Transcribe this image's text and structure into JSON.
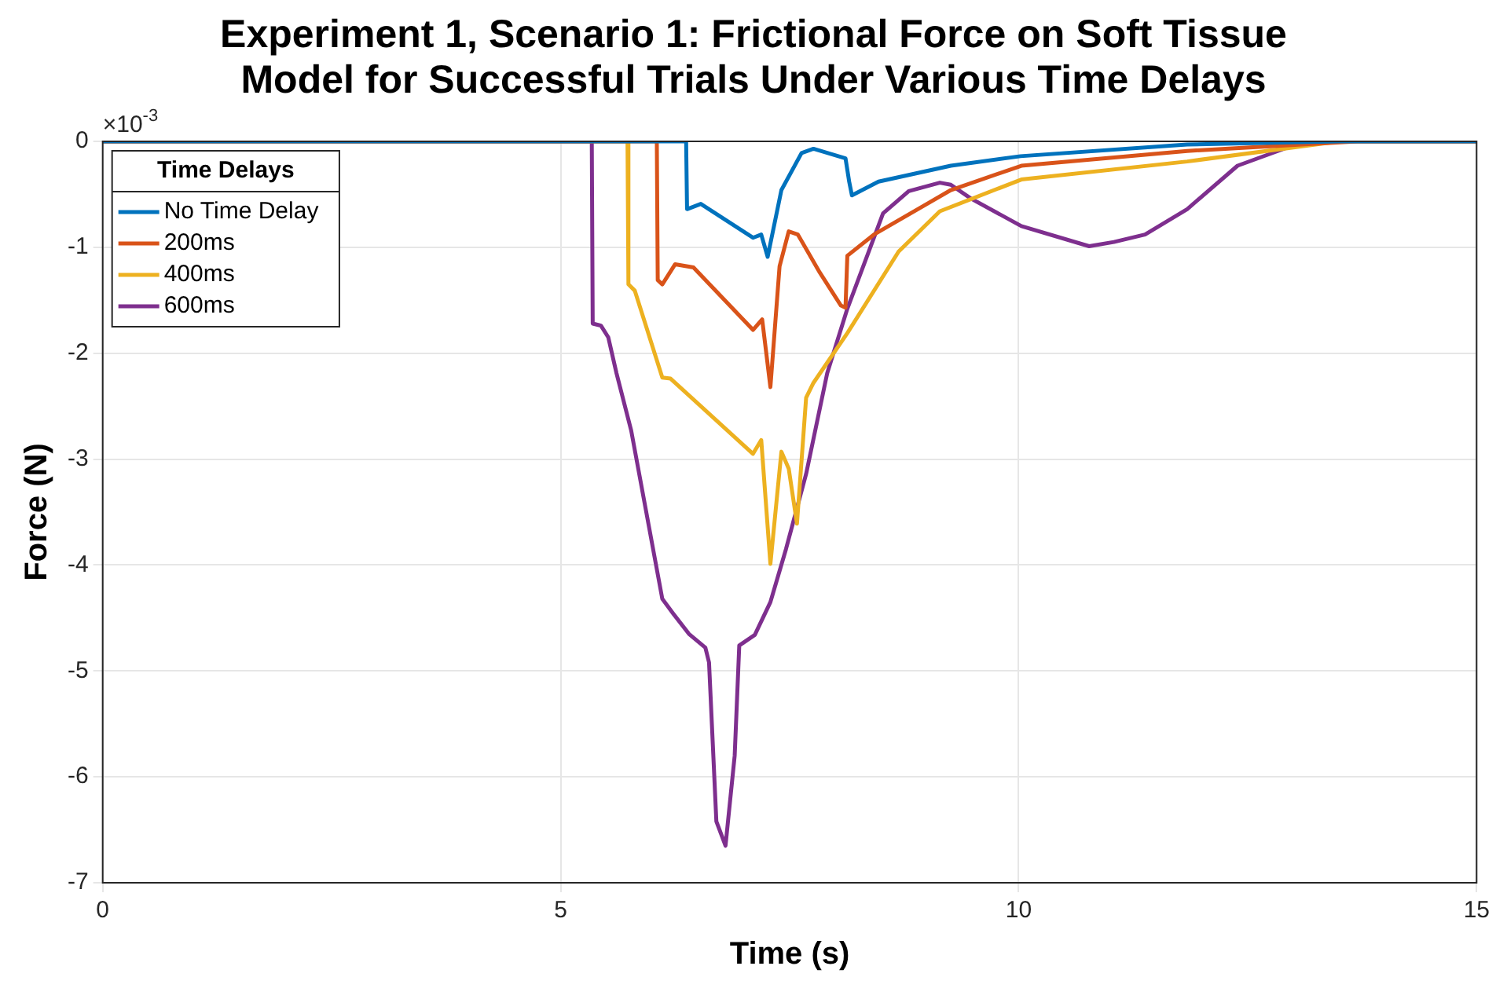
{
  "chart_data": {
    "type": "line",
    "title": "Experiment 1, Scenario 1: Frictional Force on Soft Tissue Model for Successful Trials Under Various Time Delays",
    "xlabel": "Time (s)",
    "ylabel": "Force (N)",
    "legend_title": "Time Delays",
    "annotations": [
      "×10$^{-3}$"
    ],
    "xlim": [
      0,
      15
    ],
    "xticks": [
      0,
      5,
      10,
      15
    ],
    "ylim": [
      -7,
      0
    ],
    "yticks": [
      -7,
      -6,
      -5,
      -4,
      -3,
      -2,
      -1,
      0
    ],
    "grid": true,
    "legend": "top left",
    "marker": "none",
    "line_style": "solid",
    "series": [
      {
        "name": "No Time Delay",
        "color": "#0072bd",
        "x": [
          0,
          6.37,
          6.38,
          6.53,
          7.1,
          7.19,
          7.26,
          7.41,
          7.63,
          7.76,
          8.11,
          8.15,
          8.18,
          8.47,
          9.26,
          10.02,
          11.84,
          13.5,
          15
        ],
        "values": [
          0,
          0,
          -0.64,
          -0.59,
          -0.91,
          -0.88,
          -1.09,
          -0.46,
          -0.11,
          -0.07,
          -0.16,
          -0.38,
          -0.51,
          -0.38,
          -0.23,
          -0.14,
          -0.03,
          0,
          0
        ]
      },
      {
        "name": "200ms",
        "color": "#d95319",
        "x": [
          0,
          6.05,
          6.06,
          6.11,
          6.25,
          6.45,
          7.1,
          7.2,
          7.29,
          7.39,
          7.49,
          7.59,
          7.83,
          8.06,
          8.11,
          8.13,
          8.42,
          9.26,
          10.03,
          11.84,
          13.7,
          15
        ],
        "values": [
          0,
          0,
          -1.31,
          -1.35,
          -1.16,
          -1.19,
          -1.78,
          -1.68,
          -2.32,
          -1.18,
          -0.85,
          -0.88,
          -1.24,
          -1.55,
          -1.57,
          -1.08,
          -0.88,
          -0.46,
          -0.23,
          -0.09,
          0,
          0
        ]
      },
      {
        "name": "400ms",
        "color": "#edb120",
        "x": [
          0,
          5.73,
          5.74,
          5.81,
          6.11,
          6.2,
          7.1,
          7.19,
          7.29,
          7.41,
          7.49,
          7.58,
          7.68,
          7.76,
          8.13,
          8.69,
          9.14,
          10.03,
          11.84,
          13.5,
          15
        ],
        "values": [
          0,
          0,
          -1.35,
          -1.41,
          -2.23,
          -2.24,
          -2.95,
          -2.82,
          -3.99,
          -2.93,
          -3.09,
          -3.61,
          -2.42,
          -2.28,
          -1.81,
          -1.04,
          -0.66,
          -0.36,
          -0.19,
          0,
          0
        ]
      },
      {
        "name": "600ms",
        "color": "#7e2f8e",
        "x": [
          0,
          5.34,
          5.35,
          5.44,
          5.52,
          5.61,
          5.77,
          6.11,
          6.23,
          6.4,
          6.58,
          6.62,
          6.7,
          6.8,
          6.9,
          6.95,
          7.12,
          7.29,
          7.46,
          7.68,
          7.91,
          8.13,
          8.52,
          8.8,
          9.14,
          9.26,
          9.48,
          10.03,
          10.77,
          11.04,
          11.38,
          11.84,
          12.39,
          12.96,
          13.4,
          15
        ],
        "values": [
          0,
          0,
          -1.72,
          -1.74,
          -1.85,
          -2.19,
          -2.73,
          -4.32,
          -4.46,
          -4.65,
          -4.78,
          -4.92,
          -6.42,
          -6.65,
          -5.8,
          -4.76,
          -4.66,
          -4.35,
          -3.85,
          -3.14,
          -2.19,
          -1.58,
          -0.68,
          -0.47,
          -0.39,
          -0.41,
          -0.54,
          -0.8,
          -0.99,
          -0.95,
          -0.88,
          -0.64,
          -0.23,
          -0.05,
          0,
          0
        ]
      }
    ]
  }
}
